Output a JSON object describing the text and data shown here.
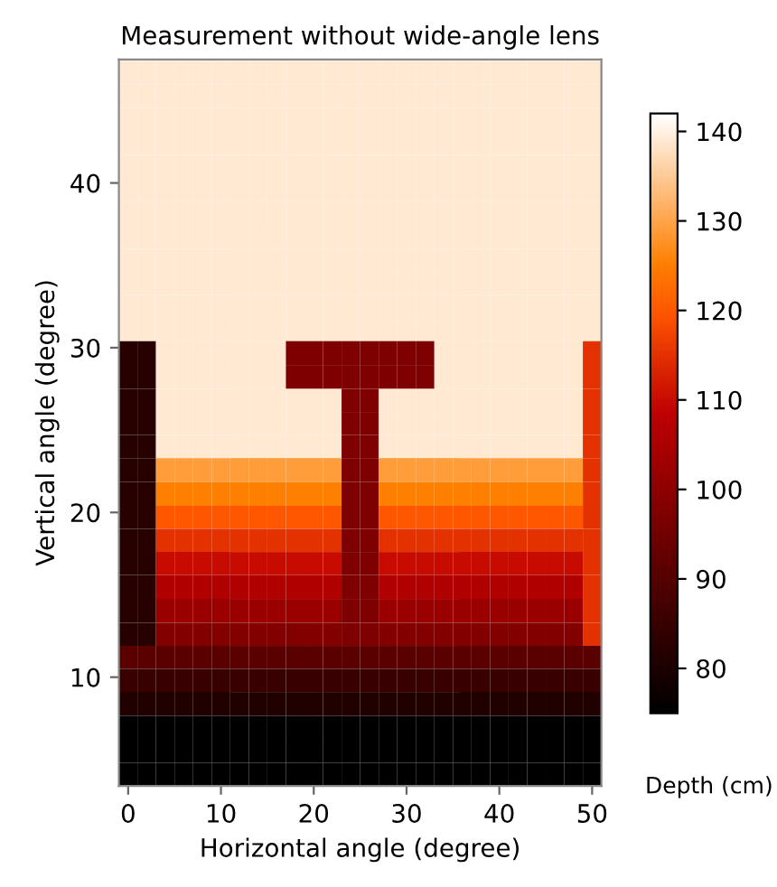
{
  "chart_data": {
    "type": "heatmap",
    "title": "Measurement without wide-angle lens",
    "xlabel": "Horizontal angle (degree)",
    "ylabel": "Vertical angle (degree)",
    "clabel": "Depth (cm)",
    "x": [
      0,
      2,
      4,
      6,
      8,
      10,
      12,
      14,
      16,
      18,
      20,
      22,
      24,
      26,
      28,
      30,
      32,
      34,
      36,
      38,
      40,
      42,
      44,
      46,
      48,
      50
    ],
    "y": [
      46.7,
      45.3,
      43.8,
      42.4,
      41.0,
      39.6,
      38.2,
      36.7,
      35.3,
      33.9,
      32.5,
      31.1,
      29.7,
      28.2,
      26.8,
      25.4,
      24.0,
      22.6,
      21.1,
      19.7,
      18.3,
      16.9,
      15.5,
      14.0,
      12.6,
      11.2,
      9.8,
      8.4,
      6.9,
      5.5,
      4.1
    ],
    "cells": [
      [
        139,
        139,
        139,
        139,
        139,
        139,
        139,
        139,
        139,
        139,
        139,
        139,
        139,
        139,
        139,
        139,
        139,
        139,
        139,
        139,
        139,
        139,
        139,
        139,
        139,
        139
      ],
      [
        139,
        139,
        139,
        139,
        139,
        139,
        139,
        139,
        139,
        139,
        139,
        139,
        139,
        139,
        139,
        139,
        139,
        139,
        139,
        139,
        139,
        139,
        139,
        139,
        139,
        139
      ],
      [
        139,
        139,
        139,
        139,
        139,
        139,
        139,
        139,
        139,
        139,
        139,
        139,
        139,
        139,
        139,
        139,
        139,
        139,
        139,
        139,
        139,
        139,
        139,
        139,
        139,
        139
      ],
      [
        139,
        139,
        139,
        139,
        139,
        139,
        139,
        139,
        139,
        139,
        139,
        139,
        139,
        139,
        139,
        139,
        139,
        139,
        139,
        139,
        139,
        139,
        139,
        139,
        139,
        139
      ],
      [
        139,
        139,
        139,
        139,
        139,
        139,
        139,
        139,
        139,
        139,
        139,
        139,
        139,
        139,
        139,
        139,
        139,
        139,
        139,
        139,
        139,
        139,
        139,
        139,
        139,
        139
      ],
      [
        139,
        139,
        139,
        139,
        139,
        139,
        139,
        139,
        139,
        139,
        139,
        139,
        139,
        139,
        139,
        139,
        139,
        139,
        139,
        139,
        139,
        139,
        139,
        139,
        139,
        139
      ],
      [
        139,
        139,
        139,
        139,
        139,
        139,
        139,
        139,
        139,
        139,
        139,
        139,
        139,
        139,
        139,
        139,
        139,
        139,
        139,
        139,
        139,
        139,
        139,
        139,
        139,
        139
      ],
      [
        139,
        139,
        139,
        139,
        139,
        139,
        139,
        139,
        139,
        139,
        139,
        139,
        139,
        139,
        139,
        139,
        139,
        139,
        139,
        139,
        139,
        139,
        139,
        139,
        139,
        139
      ],
      [
        139,
        139,
        139,
        139,
        139,
        139,
        139,
        139,
        139,
        139,
        139,
        139,
        139,
        139,
        139,
        139,
        139,
        139,
        139,
        139,
        139,
        139,
        139,
        139,
        139,
        139
      ],
      [
        139,
        139,
        139,
        139,
        139,
        139,
        139,
        139,
        139,
        139,
        139,
        139,
        139,
        139,
        139,
        139,
        139,
        139,
        139,
        139,
        139,
        139,
        139,
        139,
        139,
        139
      ],
      [
        139,
        139,
        139,
        139,
        139,
        139,
        139,
        139,
        139,
        139,
        139,
        139,
        139,
        139,
        139,
        139,
        139,
        139,
        139,
        139,
        139,
        139,
        139,
        139,
        139,
        139
      ],
      [
        139,
        139,
        139,
        139,
        139,
        139,
        139,
        139,
        139,
        139,
        139,
        139,
        139,
        139,
        139,
        139,
        139,
        139,
        139,
        139,
        139,
        139,
        139,
        139,
        139,
        139
      ],
      [
        82,
        82,
        139,
        139,
        139,
        139,
        139,
        139,
        139,
        97,
        97,
        97,
        97,
        97,
        97,
        97,
        97,
        139,
        139,
        139,
        139,
        139,
        139,
        139,
        139,
        115
      ],
      [
        82,
        82,
        139,
        139,
        139,
        139,
        139,
        139,
        139,
        97,
        97,
        97,
        97,
        97,
        97,
        97,
        97,
        139,
        139,
        139,
        139,
        139,
        139,
        139,
        139,
        115
      ],
      [
        82,
        82,
        139,
        139,
        139,
        139,
        139,
        139,
        139,
        139,
        139,
        139,
        97,
        97,
        139,
        139,
        139,
        139,
        139,
        139,
        139,
        139,
        139,
        139,
        139,
        115
      ],
      [
        82,
        82,
        139,
        139,
        139,
        139,
        139,
        139,
        139,
        139,
        139,
        139,
        97,
        97,
        139,
        139,
        139,
        139,
        139,
        139,
        139,
        139,
        139,
        139,
        139,
        115
      ],
      [
        82,
        82,
        139,
        139,
        139,
        139,
        139,
        139,
        139,
        139,
        139,
        139,
        97,
        97,
        139,
        139,
        139,
        139,
        139,
        139,
        139,
        139,
        139,
        139,
        139,
        115
      ],
      [
        82,
        82,
        129,
        129,
        129,
        129,
        129,
        129,
        129,
        129,
        129,
        129,
        97,
        97,
        129,
        129,
        129,
        129,
        129,
        129,
        129,
        129,
        129,
        129,
        129,
        115
      ],
      [
        82,
        82,
        125,
        125,
        125,
        125,
        125,
        125,
        125,
        125,
        125,
        125,
        97,
        97,
        125,
        125,
        125,
        125,
        125,
        125,
        125,
        125,
        125,
        125,
        125,
        115
      ],
      [
        82,
        82,
        120,
        120,
        120,
        120,
        120,
        120,
        120,
        120,
        120,
        120,
        97,
        97,
        120,
        120,
        120,
        120,
        120,
        120,
        120,
        120,
        120,
        120,
        120,
        115
      ],
      [
        82,
        82,
        115,
        115,
        115,
        115,
        115,
        115,
        115,
        115,
        115,
        115,
        97,
        97,
        115,
        115,
        115,
        115,
        115,
        115,
        115,
        115,
        115,
        115,
        115,
        115
      ],
      [
        82,
        82,
        110,
        110,
        110,
        110,
        110,
        110,
        110,
        110,
        110,
        110,
        97,
        97,
        110,
        110,
        110,
        110,
        110,
        110,
        110,
        110,
        110,
        110,
        110,
        115
      ],
      [
        82,
        82,
        106,
        106,
        106,
        106,
        106,
        106,
        106,
        106,
        106,
        106,
        97,
        97,
        106,
        106,
        106,
        106,
        106,
        106,
        106,
        106,
        106,
        106,
        106,
        115
      ],
      [
        82,
        82,
        102,
        102,
        102,
        102,
        102,
        102,
        102,
        102,
        102,
        102,
        97,
        97,
        102,
        102,
        102,
        102,
        102,
        102,
        102,
        102,
        102,
        102,
        102,
        115
      ],
      [
        82,
        82,
        98,
        98,
        98,
        98,
        98,
        98,
        98,
        98,
        98,
        98,
        97,
        97,
        98,
        98,
        98,
        98,
        98,
        98,
        98,
        98,
        98,
        98,
        98,
        115
      ],
      [
        91,
        91,
        91,
        91,
        91,
        91,
        91,
        91,
        91,
        91,
        91,
        91,
        91,
        91,
        91,
        91,
        91,
        91,
        91,
        91,
        91,
        91,
        91,
        91,
        91,
        91
      ],
      [
        85,
        85,
        85,
        85,
        85,
        85,
        85,
        85,
        85,
        85,
        85,
        85,
        85,
        85,
        85,
        85,
        85,
        85,
        85,
        85,
        85,
        85,
        85,
        85,
        85,
        85
      ],
      [
        81,
        81,
        81,
        81,
        81,
        81,
        81,
        81,
        81,
        81,
        81,
        81,
        81,
        81,
        81,
        81,
        81,
        81,
        81,
        81,
        81,
        81,
        81,
        81,
        81,
        81
      ],
      [
        75,
        75,
        75,
        75,
        75,
        75,
        75,
        75,
        75,
        75,
        75,
        75,
        75,
        75,
        75,
        75,
        75,
        75,
        75,
        75,
        75,
        75,
        75,
        75,
        75,
        75
      ],
      [
        75,
        75,
        75,
        75,
        75,
        75,
        75,
        75,
        75,
        75,
        75,
        75,
        75,
        75,
        75,
        75,
        75,
        75,
        75,
        75,
        75,
        75,
        75,
        75,
        75,
        75
      ],
      [
        75,
        75,
        75,
        75,
        75,
        75,
        75,
        75,
        75,
        75,
        75,
        75,
        75,
        75,
        75,
        75,
        75,
        75,
        75,
        75,
        75,
        75,
        75,
        75,
        75,
        75
      ]
    ],
    "clim": [
      75,
      142
    ],
    "cticks": [
      80,
      90,
      100,
      110,
      120,
      130,
      140
    ],
    "xlim": [
      -1,
      51
    ],
    "ylim": [
      3.4,
      47.5
    ],
    "xticks": [
      0,
      10,
      20,
      30,
      40,
      50
    ],
    "yticks": [
      10,
      20,
      30,
      40
    ],
    "grid": false
  }
}
